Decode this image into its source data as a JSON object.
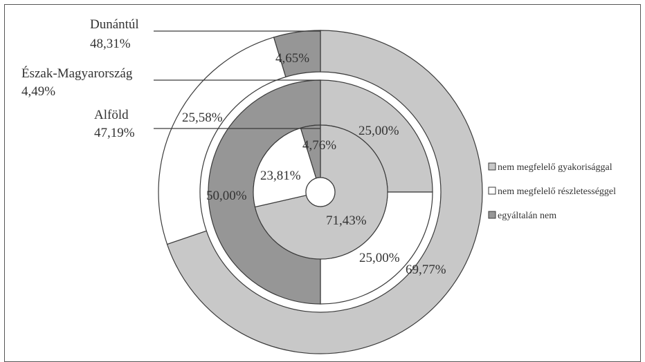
{
  "colors": {
    "gyakorisag": "#c8c8c8",
    "reszletesseg": "#ffffff",
    "egyaltalan": "#969696",
    "stroke": "#3a3a3a"
  },
  "chart_data": {
    "type": "pie",
    "subtype": "multi-level-donut",
    "title": "",
    "legend": {
      "placement": "right",
      "entries": [
        {
          "key": "gyakorisag",
          "label": "nem megfelelő gyakorisággal",
          "color": "#c8c8c8"
        },
        {
          "key": "reszletesseg",
          "label": "nem megfelelő részletességgel",
          "color": "#ffffff"
        },
        {
          "key": "egyaltalan",
          "label": "egyáltalán nem",
          "color": "#969696"
        }
      ]
    },
    "rings": [
      {
        "region": "Dunántúl",
        "share": "48,31%",
        "position": "outer",
        "slices": [
          {
            "key": "gyakorisag",
            "value": 69.77,
            "label": "69,77%"
          },
          {
            "key": "reszletesseg",
            "value": 25.58,
            "label": "25,58%"
          },
          {
            "key": "egyaltalan",
            "value": 4.65,
            "label": "4,65%"
          }
        ]
      },
      {
        "region": "Észak-Magyarország",
        "share": "4,49%",
        "position": "middle",
        "slices": [
          {
            "key": "gyakorisag",
            "value": 25.0,
            "label": "25,00%"
          },
          {
            "key": "reszletesseg",
            "value": 25.0,
            "label": "25,00%"
          },
          {
            "key": "egyaltalan",
            "value": 50.0,
            "label": "50,00%"
          }
        ]
      },
      {
        "region": "Alföld",
        "share": "47,19%",
        "position": "inner",
        "slices": [
          {
            "key": "gyakorisag",
            "value": 71.43,
            "label": "71,43%"
          },
          {
            "key": "reszletesseg",
            "value": 23.81,
            "label": "23,81%"
          },
          {
            "key": "egyaltalan",
            "value": 4.76,
            "label": "4,76%"
          }
        ]
      }
    ]
  }
}
